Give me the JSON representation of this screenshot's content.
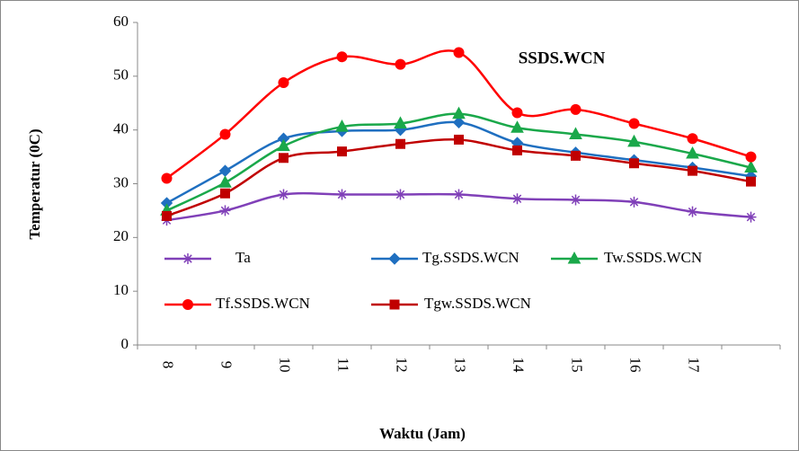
{
  "chart_data": {
    "type": "line",
    "annotation": "SSDS.WCN",
    "xlabel": "Waktu (Jam)",
    "ylabel": "Temperatur (0C)",
    "categories": [
      "8",
      "9",
      "10",
      "11",
      "12",
      "13",
      "14",
      "15",
      "16",
      "17",
      null
    ],
    "ylim": [
      0,
      60
    ],
    "yticks": [
      0,
      10,
      20,
      30,
      40,
      50,
      60
    ],
    "series": [
      {
        "name": "Ta",
        "color": "#8040b8",
        "marker": "star",
        "values": [
          23.2,
          25,
          28,
          28,
          28,
          28,
          27.2,
          27,
          26.6,
          24.8,
          23.8
        ]
      },
      {
        "name": "Tg.SSDS.WCN",
        "color": "#1f6fc0",
        "marker": "diamond",
        "values": [
          26.4,
          32.4,
          38.4,
          39.8,
          40,
          41.4,
          37.6,
          35.8,
          34.4,
          33,
          31.4
        ]
      },
      {
        "name": "Tw.SSDS.WCN",
        "color": "#1aa84a",
        "marker": "triangle",
        "values": [
          25,
          30.2,
          37,
          40.6,
          41.2,
          43,
          40.4,
          39.2,
          37.8,
          35.6,
          33
        ]
      },
      {
        "name": "Tf.SSDS.WCN",
        "color": "#ff0000",
        "marker": "circle",
        "values": [
          31,
          39.2,
          48.8,
          53.6,
          52.2,
          54.4,
          43.2,
          43.8,
          41.2,
          38.4,
          35
        ]
      },
      {
        "name": "Tgw.SSDS.WCN",
        "color": "#c00000",
        "marker": "square",
        "values": [
          24,
          28.2,
          34.8,
          36,
          37.4,
          38.2,
          36.2,
          35.2,
          33.8,
          32.4,
          30.4
        ]
      }
    ]
  }
}
